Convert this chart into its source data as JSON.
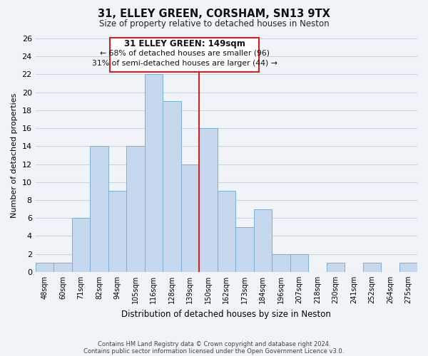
{
  "title": "31, ELLEY GREEN, CORSHAM, SN13 9TX",
  "subtitle": "Size of property relative to detached houses in Neston",
  "xlabel": "Distribution of detached houses by size in Neston",
  "ylabel": "Number of detached properties",
  "bar_labels": [
    "48sqm",
    "60sqm",
    "71sqm",
    "82sqm",
    "94sqm",
    "105sqm",
    "116sqm",
    "128sqm",
    "139sqm",
    "150sqm",
    "162sqm",
    "173sqm",
    "184sqm",
    "196sqm",
    "207sqm",
    "218sqm",
    "230sqm",
    "241sqm",
    "252sqm",
    "264sqm",
    "275sqm"
  ],
  "bar_values": [
    1,
    1,
    6,
    14,
    9,
    14,
    22,
    19,
    12,
    16,
    9,
    5,
    7,
    2,
    2,
    0,
    1,
    0,
    1,
    0,
    1
  ],
  "bar_color": "#c5d8ed",
  "bar_edge_color": "#7aafd4",
  "vline_color": "#cc2222",
  "ylim": [
    0,
    26
  ],
  "yticks": [
    0,
    2,
    4,
    6,
    8,
    10,
    12,
    14,
    16,
    18,
    20,
    22,
    24,
    26
  ],
  "annotation_title": "31 ELLEY GREEN: 149sqm",
  "annotation_line1": "← 68% of detached houses are smaller (96)",
  "annotation_line2": "31% of semi-detached houses are larger (44) →",
  "annotation_box_color": "#ffffff",
  "annotation_box_edge": "#cc2222",
  "footer1": "Contains HM Land Registry data © Crown copyright and database right 2024.",
  "footer2": "Contains public sector information licensed under the Open Government Licence v3.0.",
  "bg_color": "#f0f4f8",
  "grid_color": "#c8d4e0"
}
